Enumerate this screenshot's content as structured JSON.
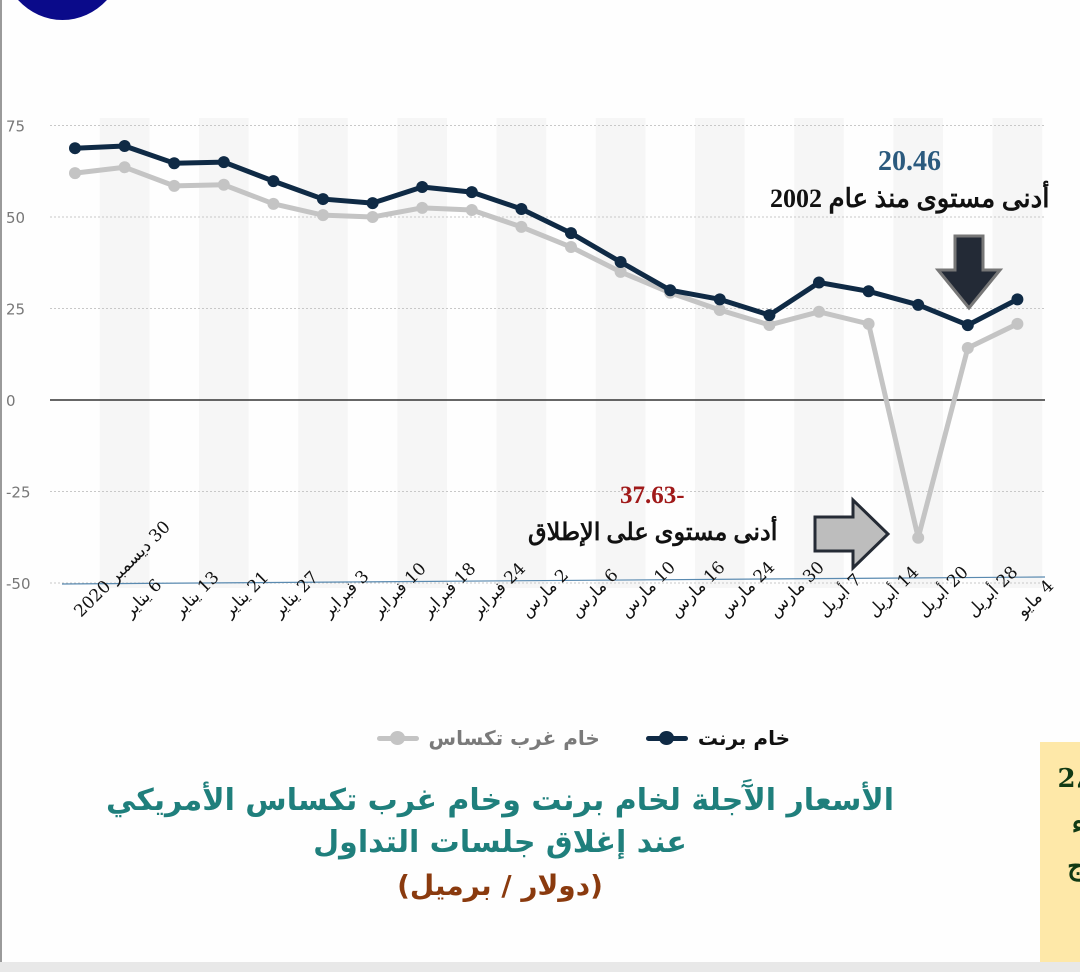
{
  "chart_data": {
    "type": "line",
    "title": "الأسعار الآجلة لخام برنت وخام غرب تكساس الأمريكي عند إغلاق جلسات التداول",
    "unit": "(دولار / برميل)",
    "xlabel": "",
    "ylabel": "",
    "ylim": [
      -50,
      75
    ],
    "yticks": [
      75,
      50,
      25,
      0,
      -25,
      -50
    ],
    "ytick_labels": [
      "75",
      "50",
      "25",
      "0",
      "-25",
      "-50"
    ],
    "grid": true,
    "legend_position": "bottom",
    "categories": [
      "30 ديسمبر 2020",
      "6 يناير",
      "13 يناير",
      "21 يناير",
      "27 يناير",
      "3 فبراير",
      "10 فبراير",
      "18 فبراير",
      "24 فبراير",
      "2 مارس",
      "6 مارس",
      "10 مارس",
      "16 مارس",
      "24 مارس",
      "30 مارس",
      "7 أبريل",
      "14 أبريل",
      "20 أبريل",
      "28 أبريل",
      "4 مايو"
    ],
    "series": [
      {
        "name": "خام برنت",
        "color": "#0f2a45",
        "values": [
          68.8,
          69.4,
          64.7,
          65.0,
          59.8,
          54.9,
          53.8,
          58.2,
          56.8,
          52.2,
          45.6,
          37.7,
          30.0,
          27.5,
          23.2,
          32.1,
          29.7,
          26.0,
          20.46,
          27.5
        ]
      },
      {
        "name": "خام غرب تكساس",
        "color": "#bdbdbd",
        "values": [
          62.0,
          63.6,
          58.5,
          58.8,
          53.6,
          50.5,
          50.0,
          52.5,
          51.9,
          47.3,
          41.8,
          35.0,
          29.3,
          24.6,
          20.5,
          24.1,
          20.8,
          -37.63,
          14.2,
          20.8
        ]
      }
    ],
    "annotations": [
      {
        "value": "20.46",
        "text": "أدنى مستوى منذ عام 2002",
        "color": "#2b5a7e",
        "series": "خام برنت",
        "index": 18
      },
      {
        "value": "-37.63",
        "text": "أدنى مستوى على الإطلاق",
        "color": "#a01a1a",
        "series": "خام غرب تكساس",
        "index": 17
      }
    ]
  },
  "legend": {
    "items": [
      {
        "label": "خام برنت",
        "color": "#0f2a45",
        "text_color": "#111111"
      },
      {
        "label": "خام غرب تكساس",
        "color": "#bdbdbd",
        "text_color": "#7a7a7a"
      }
    ]
  },
  "annotations": {
    "brent_low_value": "20.46",
    "brent_low_text": "أدنى مستوى منذ عام 2002",
    "wti_low_value": "-37.63",
    "wti_low_text": "أدنى مستوى على الإطلاق"
  },
  "title": {
    "line1": "الأسعار الآَجلة لخام برنت وخام غرب تكساس الأمريكي",
    "line2": "عند إغلاق جلسات التداول",
    "unit": "(دولار / برميل)"
  },
  "side_panel": {
    "fragments": [
      "،2",
      "ء",
      "ج"
    ]
  },
  "colors": {
    "brent": "#0f2a45",
    "wti": "#bdbdbd",
    "title": "#1f7f7c",
    "unit": "#8a3a0e",
    "brent_annot": "#2b5a7e",
    "wti_annot": "#a01a1a",
    "side_panel_bg": "#fee8a8"
  }
}
